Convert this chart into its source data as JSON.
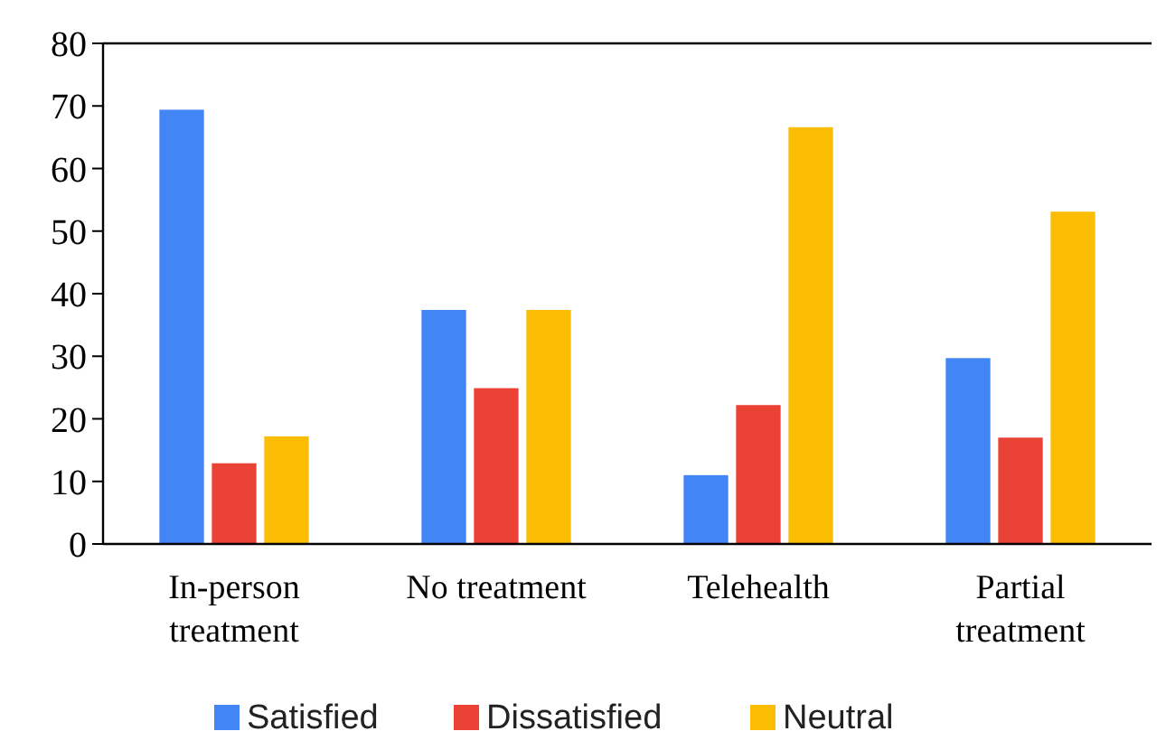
{
  "chart_data": {
    "type": "bar",
    "categories": [
      "In-person treatment",
      "No treatment",
      "Telehealth",
      "Partial treatment"
    ],
    "series": [
      {
        "name": "Satisfied",
        "color": "#4285f4",
        "values": [
          69.4,
          37.4,
          11.0,
          29.7
        ]
      },
      {
        "name": "Dissatisfied",
        "color": "#ea4335",
        "values": [
          12.9,
          24.9,
          22.2,
          17.0
        ]
      },
      {
        "name": "Neutral",
        "color": "#fbbc04",
        "values": [
          17.2,
          37.4,
          66.6,
          53.1
        ]
      }
    ],
    "ylim": [
      0,
      80
    ],
    "yticks": [
      0,
      10,
      20,
      30,
      40,
      50,
      60,
      70,
      80
    ],
    "grid": false,
    "legend": "bottom"
  }
}
